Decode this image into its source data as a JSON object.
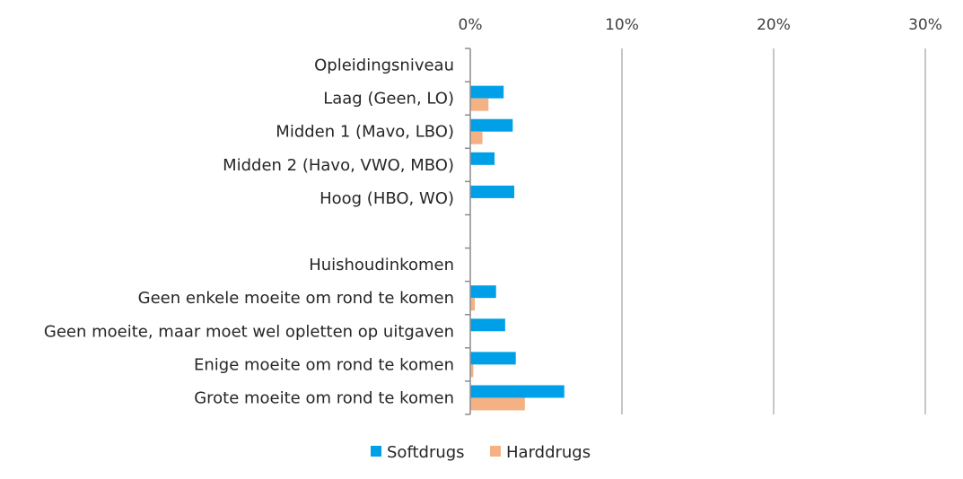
{
  "chart_data": {
    "type": "bar",
    "orientation": "horizontal",
    "categories": [
      "Opleidingsniveau",
      "Laag (Geen, LO)",
      "Midden 1 (Mavo, LBO)",
      "Midden 2 (Havo, VWO, MBO)",
      "Hoog (HBO, WO)",
      "",
      "Huishoudinkomen",
      "Geen enkele moeite om rond te komen",
      "Geen moeite, maar moet wel opletten op uitgaven",
      "Enige moeite om rond te komen",
      "Grote moeite om rond te komen"
    ],
    "series": [
      {
        "name": "Softdrugs",
        "color": "#00a0e9",
        "values": [
          null,
          2.2,
          2.8,
          1.6,
          2.9,
          null,
          null,
          1.7,
          2.3,
          3.0,
          6.2
        ]
      },
      {
        "name": "Harddrugs",
        "color": "#f4b183",
        "values": [
          null,
          1.2,
          0.8,
          null,
          null,
          null,
          null,
          0.3,
          null,
          0.2,
          3.6
        ]
      }
    ],
    "xlim": [
      0,
      30
    ],
    "ticks": [
      0,
      10,
      20,
      30
    ],
    "tick_labels": [
      "0%",
      "10%",
      "20%",
      "30%"
    ],
    "x_axis_position": "top",
    "grid": true,
    "legend_position": "bottom"
  }
}
